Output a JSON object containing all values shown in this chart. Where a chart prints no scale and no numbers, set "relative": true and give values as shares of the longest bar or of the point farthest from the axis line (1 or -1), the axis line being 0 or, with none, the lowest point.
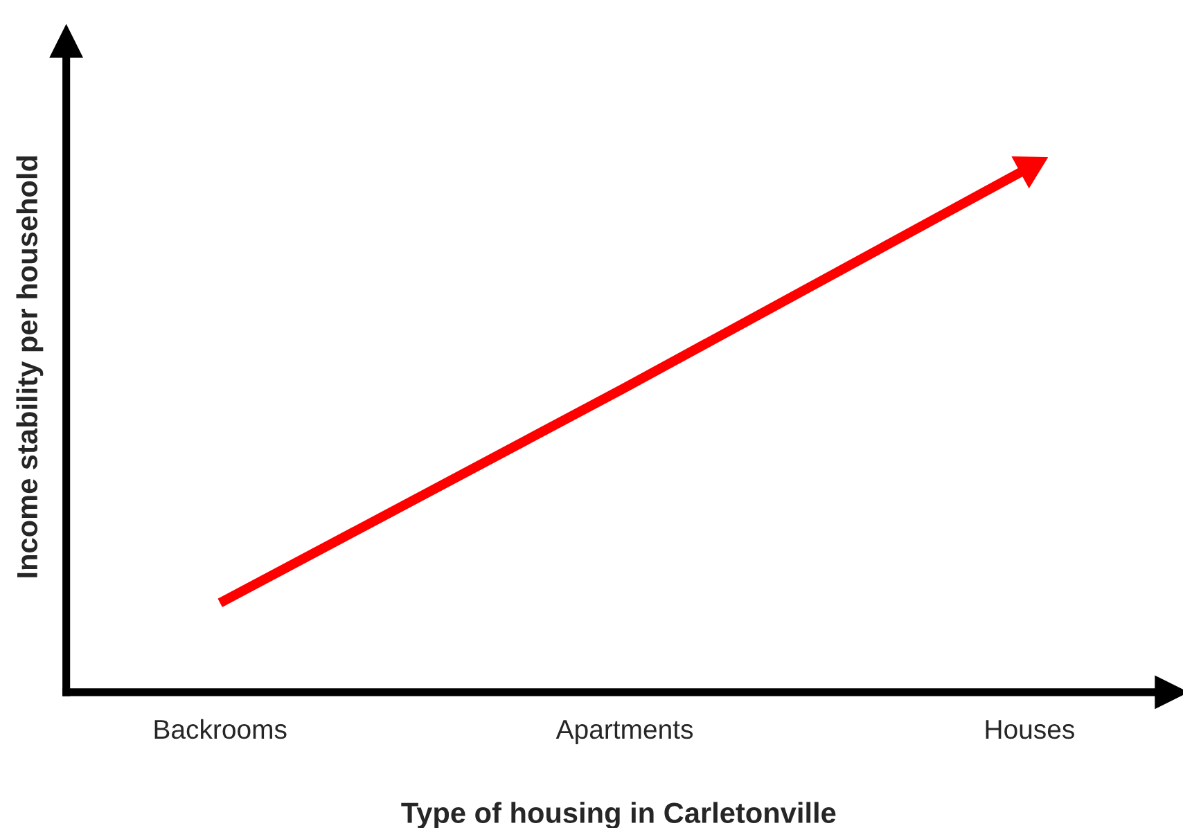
{
  "chart_data": {
    "type": "line",
    "xlabel": "Type of housing in Carletonville",
    "ylabel": "Income stability per household",
    "categories": [
      "Backrooms",
      "Apartments",
      "Houses"
    ],
    "relative": true,
    "series": [
      {
        "color": "#ff0000",
        "values": [
          0.17,
          0.58,
          1
        ]
      }
    ],
    "grid": false,
    "marker": "none",
    "line_style": "solid"
  }
}
